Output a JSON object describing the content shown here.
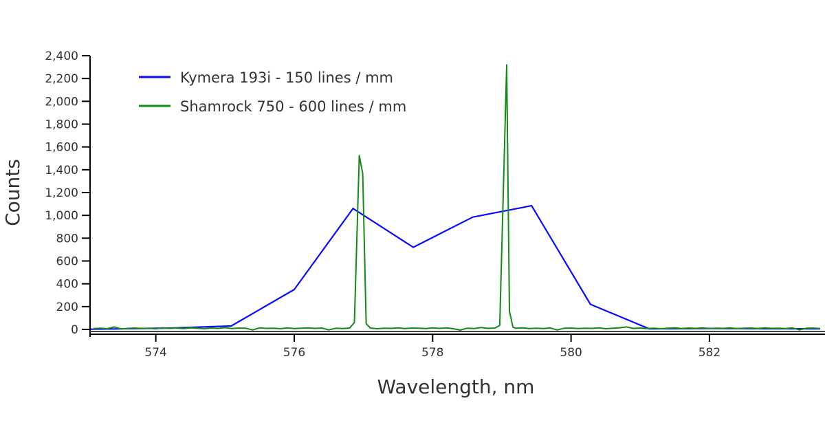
{
  "chart_data": {
    "type": "line",
    "title": "",
    "xlabel": "Wavelength, nm",
    "ylabel": "Counts",
    "xlim": [
      573.05,
      583.6
    ],
    "ylim": [
      0,
      2400
    ],
    "x_ticks": [
      "574",
      "576",
      "578",
      "580",
      "582"
    ],
    "y_ticks": [
      "0",
      "200",
      "400",
      "600",
      "800",
      "1,000",
      "1,200",
      "1,400",
      "1,600",
      "1,800",
      "2,000",
      "2,200",
      "2,400"
    ],
    "grid": false,
    "legend_position": "top-left",
    "series": [
      {
        "name": "Kymera 193i - 150 lines / mm",
        "color": "#0a0aff",
        "points": [
          [
            573.05,
            2
          ],
          [
            573.4,
            4
          ],
          [
            574.24,
            12
          ],
          [
            575.09,
            30
          ],
          [
            576.0,
            350
          ],
          [
            576.85,
            1060
          ],
          [
            577.72,
            720
          ],
          [
            578.58,
            985
          ],
          [
            579.43,
            1085
          ],
          [
            580.28,
            220
          ],
          [
            581.13,
            5
          ],
          [
            582.0,
            8
          ],
          [
            582.85,
            6
          ],
          [
            583.6,
            5
          ]
        ]
      },
      {
        "name": "Shamrock 750 - 600 lines / mm",
        "color": "#138a13",
        "points": [
          [
            573.1,
            8
          ],
          [
            573.2,
            10
          ],
          [
            573.3,
            6
          ],
          [
            573.4,
            22
          ],
          [
            573.5,
            4
          ],
          [
            573.6,
            9
          ],
          [
            573.7,
            12
          ],
          [
            573.8,
            7
          ],
          [
            573.9,
            11
          ],
          [
            574.0,
            5
          ],
          [
            574.1,
            13
          ],
          [
            574.2,
            9
          ],
          [
            574.3,
            12
          ],
          [
            574.4,
            8
          ],
          [
            574.5,
            14
          ],
          [
            574.6,
            10
          ],
          [
            574.7,
            6
          ],
          [
            574.8,
            12
          ],
          [
            574.9,
            9
          ],
          [
            575.0,
            15
          ],
          [
            575.1,
            8
          ],
          [
            575.2,
            12
          ],
          [
            575.3,
            10
          ],
          [
            575.4,
            -5
          ],
          [
            575.5,
            14
          ],
          [
            575.6,
            9
          ],
          [
            575.7,
            11
          ],
          [
            575.8,
            6
          ],
          [
            575.9,
            13
          ],
          [
            576.0,
            8
          ],
          [
            576.1,
            10
          ],
          [
            576.2,
            14
          ],
          [
            576.3,
            9
          ],
          [
            576.4,
            12
          ],
          [
            576.5,
            -4
          ],
          [
            576.6,
            10
          ],
          [
            576.7,
            7
          ],
          [
            576.8,
            12
          ],
          [
            576.87,
            60
          ],
          [
            576.94,
            1524
          ],
          [
            576.99,
            1367
          ],
          [
            577.04,
            50
          ],
          [
            577.1,
            12
          ],
          [
            577.2,
            6
          ],
          [
            577.3,
            11
          ],
          [
            577.4,
            9
          ],
          [
            577.5,
            14
          ],
          [
            577.6,
            8
          ],
          [
            577.7,
            12
          ],
          [
            577.8,
            10
          ],
          [
            577.9,
            7
          ],
          [
            578.0,
            13
          ],
          [
            578.1,
            9
          ],
          [
            578.2,
            14
          ],
          [
            578.3,
            6
          ],
          [
            578.4,
            -6
          ],
          [
            578.5,
            11
          ],
          [
            578.6,
            8
          ],
          [
            578.7,
            16
          ],
          [
            578.8,
            9
          ],
          [
            578.9,
            12
          ],
          [
            578.97,
            35
          ],
          [
            579.07,
            2320
          ],
          [
            579.11,
            160
          ],
          [
            579.16,
            20
          ],
          [
            579.2,
            10
          ],
          [
            579.3,
            14
          ],
          [
            579.4,
            7
          ],
          [
            579.5,
            11
          ],
          [
            579.6,
            8
          ],
          [
            579.7,
            13
          ],
          [
            579.8,
            -5
          ],
          [
            579.9,
            10
          ],
          [
            580.0,
            12
          ],
          [
            580.1,
            7
          ],
          [
            580.2,
            11
          ],
          [
            580.3,
            9
          ],
          [
            580.4,
            13
          ],
          [
            580.5,
            6
          ],
          [
            580.6,
            10
          ],
          [
            580.7,
            14
          ],
          [
            580.8,
            22
          ],
          [
            580.9,
            9
          ],
          [
            581.0,
            12
          ],
          [
            581.1,
            8
          ],
          [
            581.2,
            11
          ],
          [
            581.3,
            6
          ],
          [
            581.4,
            10
          ],
          [
            581.5,
            13
          ],
          [
            581.6,
            8
          ],
          [
            581.7,
            12
          ],
          [
            581.8,
            9
          ],
          [
            581.9,
            14
          ],
          [
            582.0,
            7
          ],
          [
            582.1,
            11
          ],
          [
            582.2,
            9
          ],
          [
            582.3,
            13
          ],
          [
            582.4,
            6
          ],
          [
            582.5,
            10
          ],
          [
            582.6,
            12
          ],
          [
            582.7,
            8
          ],
          [
            582.8,
            14
          ],
          [
            582.9,
            9
          ],
          [
            583.0,
            11
          ],
          [
            583.1,
            7
          ],
          [
            583.2,
            13
          ],
          [
            583.3,
            -4
          ],
          [
            583.4,
            10
          ],
          [
            583.5,
            12
          ],
          [
            583.6,
            8
          ]
        ]
      }
    ]
  }
}
